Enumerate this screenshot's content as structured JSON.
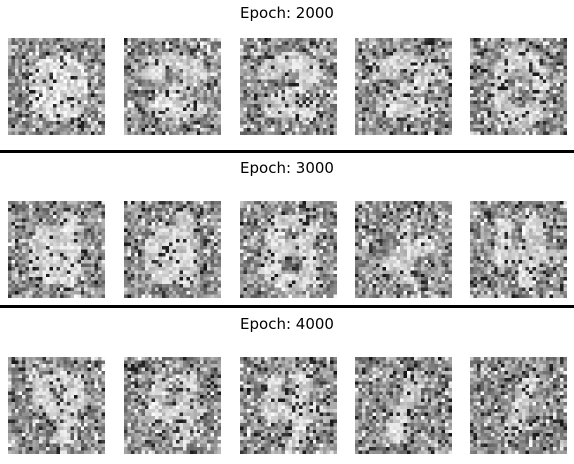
{
  "sections": [
    {
      "title": "Epoch: 2000",
      "images": [
        {
          "digit": "blob",
          "seed": 11
        },
        {
          "digit": "2",
          "seed": 12
        },
        {
          "digit": "2",
          "seed": 13
        },
        {
          "digit": "2",
          "seed": 14
        },
        {
          "digit": "0",
          "seed": 15
        }
      ]
    },
    {
      "title": "Epoch: 3000",
      "images": [
        {
          "digit": "blob4",
          "seed": 21
        },
        {
          "digit": "blob4",
          "seed": 22
        },
        {
          "digit": "8",
          "seed": 23
        },
        {
          "digit": "faint",
          "seed": 24
        },
        {
          "digit": "4",
          "seed": 25
        }
      ]
    },
    {
      "title": "Epoch: 4000",
      "images": [
        {
          "digit": "9",
          "seed": 31
        },
        {
          "digit": "4",
          "seed": 32
        },
        {
          "digit": "4",
          "seed": 33
        },
        {
          "digit": "1",
          "seed": 34
        },
        {
          "digit": "1",
          "seed": 35
        }
      ]
    }
  ]
}
